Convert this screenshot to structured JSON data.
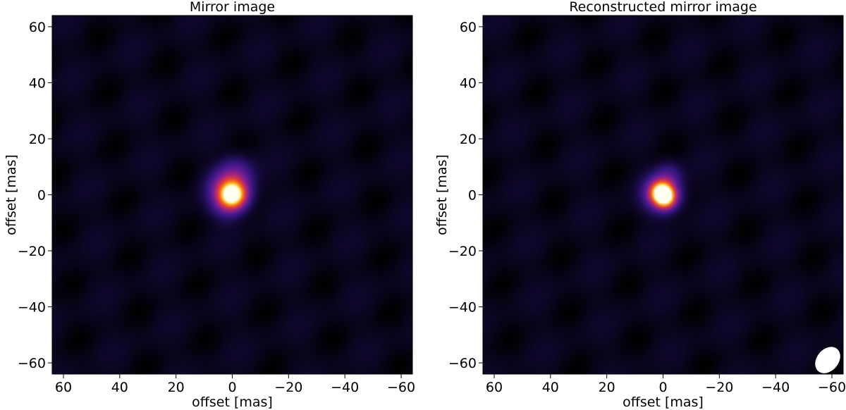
{
  "chart_data": [
    {
      "type": "heatmap",
      "title": "Mirror image",
      "xlabel": "offset [mas]",
      "ylabel": "offset [mas]",
      "xlim": [
        64,
        -64
      ],
      "ylim": [
        -64,
        64
      ],
      "xticks": [
        {
          "value": 60,
          "label": "60"
        },
        {
          "value": 40,
          "label": "40"
        },
        {
          "value": 20,
          "label": "20"
        },
        {
          "value": 0,
          "label": "0"
        },
        {
          "value": -20,
          "label": "−20"
        },
        {
          "value": -40,
          "label": "−40"
        },
        {
          "value": -60,
          "label": "−60"
        }
      ],
      "yticks": [
        {
          "value": 60,
          "label": "60"
        },
        {
          "value": 40,
          "label": "40"
        },
        {
          "value": 20,
          "label": "20"
        },
        {
          "value": 0,
          "label": "0"
        },
        {
          "value": -20,
          "label": "−20"
        },
        {
          "value": -40,
          "label": "−40"
        },
        {
          "value": -60,
          "label": "−60"
        }
      ],
      "colormap": "inferno-like",
      "background_color": "#000000",
      "source_peak": {
        "x": 0,
        "y": 0,
        "relative_intensity": 1.0
      },
      "components": [
        {
          "x": 0.0,
          "y": 0.0,
          "sigma": 2.8,
          "amp": 1.0
        },
        {
          "x": 0.8,
          "y": 1.8,
          "sigma": 4.4,
          "amp": 0.45
        },
        {
          "x": -1.5,
          "y": 8.0,
          "sigma": 3.8,
          "amp": 0.12
        },
        {
          "x": 2.0,
          "y": -4.0,
          "sigma": 3.5,
          "amp": 0.1
        }
      ],
      "beam": null
    },
    {
      "type": "heatmap",
      "title": "Reconstructed mirror image",
      "xlabel": "offset [mas]",
      "ylabel": "offset [mas]",
      "xlim": [
        64,
        -64
      ],
      "ylim": [
        -64,
        64
      ],
      "xticks": [
        {
          "value": 60,
          "label": "60"
        },
        {
          "value": 40,
          "label": "40"
        },
        {
          "value": 20,
          "label": "20"
        },
        {
          "value": 0,
          "label": "0"
        },
        {
          "value": -20,
          "label": "−20"
        },
        {
          "value": -40,
          "label": "−40"
        },
        {
          "value": -60,
          "label": "−60"
        }
      ],
      "yticks": [
        {
          "value": 60,
          "label": "60"
        },
        {
          "value": 40,
          "label": "40"
        },
        {
          "value": 20,
          "label": "20"
        },
        {
          "value": 0,
          "label": "0"
        },
        {
          "value": -20,
          "label": "−20"
        },
        {
          "value": -40,
          "label": "−40"
        },
        {
          "value": -60,
          "label": "−60"
        }
      ],
      "colormap": "inferno-like",
      "background_color": "#000000",
      "source_peak": {
        "x": 0,
        "y": 0,
        "relative_intensity": 1.0
      },
      "components": [
        {
          "x": 0.5,
          "y": 0.8,
          "sigma": 2.4,
          "amp": 1.0
        },
        {
          "x": -0.8,
          "y": -1.2,
          "sigma": 2.2,
          "amp": 0.7
        },
        {
          "x": 0.3,
          "y": 0.5,
          "sigma": 4.0,
          "amp": 0.4
        },
        {
          "x": -2.0,
          "y": 7.0,
          "sigma": 3.0,
          "amp": 0.1
        }
      ],
      "beam": {
        "x": -58.5,
        "y": -59,
        "major": 6.5,
        "minor": 4.8,
        "position_angle_deg": -50,
        "color": "#ffffff"
      }
    }
  ]
}
